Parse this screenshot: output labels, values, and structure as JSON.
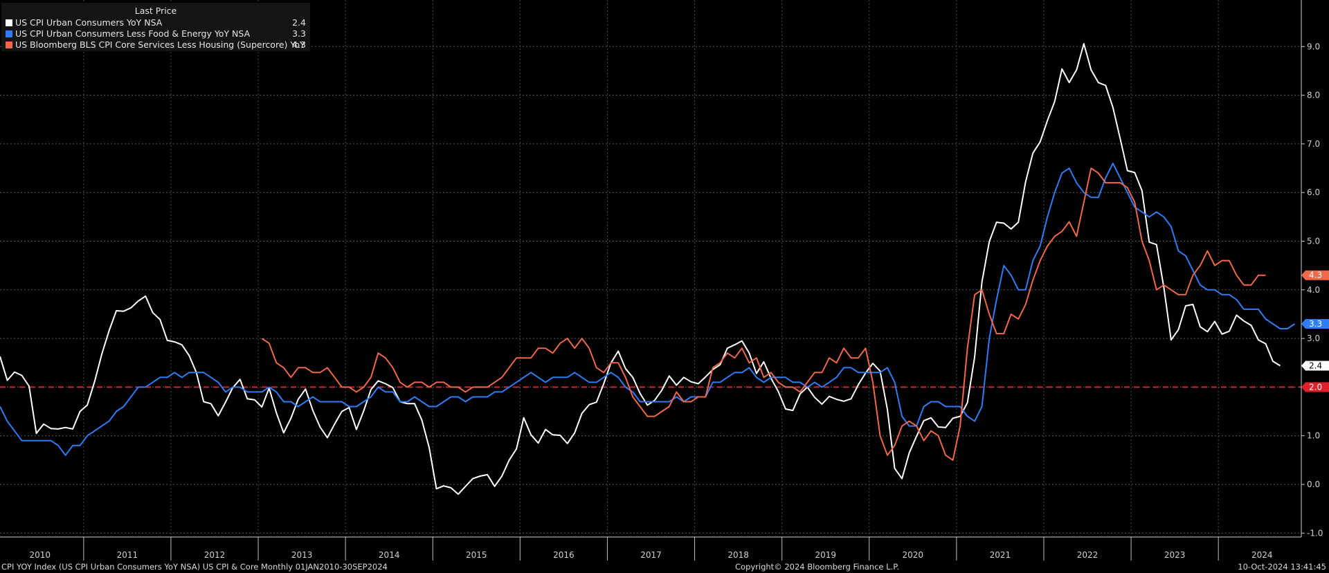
{
  "legend": {
    "header": "Last Price",
    "items": [
      {
        "label": "US CPI Urban Consumers YoY NSA",
        "value": "2.4",
        "color": "#ffffff"
      },
      {
        "label": "US CPI Urban Consumers Less Food & Energy YoY NSA",
        "value": "3.3",
        "color": "#2f7cf5"
      },
      {
        "label": "US Bloomberg BLS CPI Core Services Less Housing (Supercore) YoY",
        "value": "4.3",
        "color": "#f0684a"
      }
    ]
  },
  "footer": {
    "left": "CPI YOY Index (US CPI Urban Consumers YoY NSA) US CPI & Core  Monthly 01JAN2010-30SEP2024",
    "center": "Copyright© 2024 Bloomberg Finance L.P.",
    "right": "10-Oct-2024 13:41:45"
  },
  "chart_data": {
    "type": "line",
    "x_start": "2010-01",
    "x_end": "2024-09",
    "frequency": "monthly",
    "x_tick_labels": [
      "2010",
      "2011",
      "2012",
      "2013",
      "2014",
      "2015",
      "2016",
      "2017",
      "2018",
      "2019",
      "2020",
      "2021",
      "2022",
      "2023",
      "2024"
    ],
    "y_tick_labels": [
      "-1.0",
      "0.0",
      "1.0",
      "2.0",
      "3.0",
      "4.0",
      "5.0",
      "6.0",
      "7.0",
      "8.0",
      "9.0"
    ],
    "ylim": [
      -1.0,
      9.6
    ],
    "grid": true,
    "legend_position": "top-left",
    "reference_line": {
      "value": 2.0,
      "label": "2.0",
      "color": "#e0202a",
      "style": "dashed"
    },
    "series": [
      {
        "name": "US CPI Urban Consumers YoY NSA",
        "color": "#ffffff",
        "last_label": "2.4",
        "start": "2010-01",
        "values": [
          2.63,
          2.14,
          2.31,
          2.24,
          2.02,
          1.05,
          1.24,
          1.15,
          1.14,
          1.17,
          1.14,
          1.5,
          1.63,
          2.11,
          2.68,
          3.16,
          3.57,
          3.56,
          3.63,
          3.77,
          3.87,
          3.53,
          3.39,
          2.96,
          2.93,
          2.87,
          2.65,
          2.3,
          1.7,
          1.66,
          1.41,
          1.69,
          1.99,
          2.16,
          1.76,
          1.74,
          1.59,
          1.98,
          1.47,
          1.06,
          1.36,
          1.75,
          1.96,
          1.52,
          1.18,
          0.96,
          1.24,
          1.5,
          1.58,
          1.13,
          1.51,
          1.95,
          2.13,
          2.07,
          1.99,
          1.7,
          1.66,
          1.66,
          1.32,
          0.76,
          -0.09,
          -0.03,
          -0.07,
          -0.2,
          -0.04,
          0.12,
          0.17,
          0.2,
          -0.04,
          0.17,
          0.5,
          0.73,
          1.37,
          1.02,
          0.85,
          1.13,
          1.02,
          1.01,
          0.84,
          1.06,
          1.46,
          1.64,
          1.69,
          2.07,
          2.5,
          2.74,
          2.38,
          2.2,
          1.87,
          1.63,
          1.73,
          1.94,
          2.23,
          2.04,
          2.2,
          2.11,
          2.07,
          2.21,
          2.36,
          2.46,
          2.8,
          2.87,
          2.95,
          2.7,
          2.28,
          2.52,
          2.18,
          1.91,
          1.55,
          1.52,
          1.86,
          2.0,
          1.79,
          1.65,
          1.81,
          1.75,
          1.71,
          1.76,
          2.05,
          2.29,
          2.49,
          2.33,
          1.54,
          0.33,
          0.12,
          0.65,
          0.99,
          1.31,
          1.37,
          1.18,
          1.17,
          1.36,
          1.4,
          1.68,
          2.62,
          4.16,
          4.99,
          5.39,
          5.37,
          5.25,
          5.39,
          6.22,
          6.81,
          7.04,
          7.48,
          7.87,
          8.54,
          8.26,
          8.52,
          9.06,
          8.52,
          8.26,
          8.2,
          7.75,
          7.11,
          6.45,
          6.41,
          6.04,
          4.98,
          4.93,
          4.05,
          2.97,
          3.18,
          3.67,
          3.7,
          3.24,
          3.14,
          3.35,
          3.09,
          3.15,
          3.48,
          3.36,
          3.27,
          2.97,
          2.89,
          2.53,
          2.44
        ]
      },
      {
        "name": "US CPI Urban Consumers Less Food & Energy YoY NSA",
        "color": "#2f7cf5",
        "last_label": "3.3",
        "start": "2010-01",
        "values": [
          1.6,
          1.3,
          1.1,
          0.9,
          0.9,
          0.9,
          0.9,
          0.9,
          0.8,
          0.6,
          0.8,
          0.8,
          1.0,
          1.1,
          1.2,
          1.3,
          1.5,
          1.6,
          1.8,
          2.0,
          2.0,
          2.1,
          2.2,
          2.2,
          2.3,
          2.2,
          2.3,
          2.3,
          2.3,
          2.2,
          2.1,
          1.9,
          2.0,
          2.0,
          1.9,
          1.9,
          1.9,
          2.0,
          1.9,
          1.7,
          1.7,
          1.6,
          1.7,
          1.8,
          1.7,
          1.7,
          1.7,
          1.7,
          1.6,
          1.6,
          1.7,
          1.8,
          2.0,
          1.9,
          1.9,
          1.7,
          1.7,
          1.8,
          1.7,
          1.6,
          1.6,
          1.7,
          1.8,
          1.8,
          1.7,
          1.8,
          1.8,
          1.8,
          1.9,
          1.9,
          2.0,
          2.1,
          2.2,
          2.3,
          2.2,
          2.1,
          2.2,
          2.2,
          2.2,
          2.3,
          2.2,
          2.1,
          2.1,
          2.2,
          2.3,
          2.2,
          2.0,
          1.9,
          1.7,
          1.7,
          1.7,
          1.7,
          1.7,
          1.8,
          1.7,
          1.8,
          1.8,
          1.8,
          2.1,
          2.1,
          2.2,
          2.3,
          2.3,
          2.4,
          2.2,
          2.1,
          2.2,
          2.2,
          2.2,
          2.1,
          2.1,
          2.0,
          2.1,
          2.0,
          2.1,
          2.2,
          2.4,
          2.4,
          2.3,
          2.3,
          2.3,
          2.3,
          2.4,
          2.1,
          1.4,
          1.2,
          1.2,
          1.6,
          1.7,
          1.7,
          1.6,
          1.6,
          1.6,
          1.4,
          1.3,
          1.6,
          3.0,
          3.8,
          4.5,
          4.3,
          4.0,
          4.0,
          4.6,
          4.9,
          5.5,
          6.0,
          6.4,
          6.5,
          6.2,
          6.0,
          5.9,
          5.9,
          6.3,
          6.6,
          6.3,
          6.0,
          5.7,
          5.6,
          5.5,
          5.6,
          5.5,
          5.3,
          4.8,
          4.7,
          4.4,
          4.1,
          4.0,
          4.0,
          3.9,
          3.9,
          3.8,
          3.6,
          3.6,
          3.6,
          3.4,
          3.3,
          3.2,
          3.2,
          3.3
        ]
      },
      {
        "name": "US Bloomberg BLS CPI Core Services Less Housing (Supercore) YoY",
        "color": "#f0684a",
        "last_label": "4.3",
        "start": "2013-01",
        "values": [
          3.0,
          2.9,
          2.5,
          2.4,
          2.2,
          2.4,
          2.4,
          2.3,
          2.3,
          2.4,
          2.2,
          2.0,
          2.0,
          1.9,
          2.0,
          2.2,
          2.7,
          2.6,
          2.4,
          2.1,
          2.0,
          2.1,
          2.1,
          2.0,
          2.1,
          2.1,
          2.0,
          2.0,
          1.9,
          2.0,
          2.0,
          2.0,
          2.1,
          2.2,
          2.4,
          2.6,
          2.6,
          2.6,
          2.8,
          2.8,
          2.7,
          2.9,
          3.0,
          2.8,
          3.0,
          2.8,
          2.4,
          2.3,
          2.5,
          2.5,
          2.2,
          1.8,
          1.6,
          1.4,
          1.4,
          1.5,
          1.6,
          1.9,
          1.7,
          1.7,
          1.8,
          1.8,
          2.4,
          2.5,
          2.7,
          2.6,
          2.8,
          2.5,
          2.6,
          2.2,
          2.3,
          2.1,
          2.0,
          2.0,
          1.9,
          2.1,
          2.3,
          2.3,
          2.6,
          2.5,
          2.8,
          2.6,
          2.6,
          2.8,
          2.1,
          1.0,
          0.6,
          0.8,
          1.2,
          1.3,
          1.2,
          0.9,
          1.1,
          1.0,
          0.6,
          0.5,
          1.2,
          2.8,
          3.9,
          4.0,
          3.5,
          3.1,
          3.1,
          3.5,
          3.4,
          3.7,
          4.2,
          4.6,
          4.9,
          5.1,
          5.2,
          5.4,
          5.1,
          5.8,
          6.5,
          6.4,
          6.2,
          6.2,
          6.2,
          6.1,
          5.8,
          5.0,
          4.6,
          4.0,
          4.1,
          4.0,
          3.9,
          3.9,
          4.3,
          4.5,
          4.8,
          4.5,
          4.6,
          4.6,
          4.3,
          4.1,
          4.1,
          4.3,
          4.3
        ]
      }
    ]
  }
}
